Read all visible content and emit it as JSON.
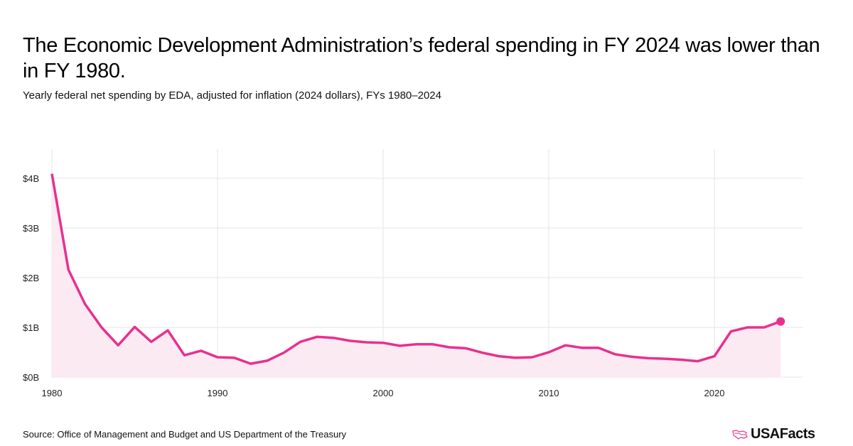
{
  "header": {
    "title": "The Economic Development Administration’s federal spending in FY 2024 was lower than in FY 1980.",
    "subtitle": "Yearly federal net spending by EDA, adjusted for inflation (2024 dollars), FYs 1980–2024"
  },
  "footer": {
    "source": "Source: Office of Management and Budget and US Department of the Treasury",
    "logo_text": "USAFacts"
  },
  "colors": {
    "line": "#E8308F",
    "fill": "#FCEAF3",
    "grid": "#E6E6E6"
  },
  "chart_data": {
    "type": "area",
    "title": "The Economic Development Administration’s federal spending in FY 2024 was lower than in FY 1980.",
    "subtitle": "Yearly federal net spending by EDA, adjusted for inflation (2024 dollars), FYs 1980–2024",
    "xlabel": "",
    "ylabel": "",
    "unit": "billions of 2024 dollars",
    "x": [
      1980,
      1981,
      1982,
      1983,
      1984,
      1985,
      1986,
      1987,
      1988,
      1989,
      1990,
      1991,
      1992,
      1993,
      1994,
      1995,
      1996,
      1997,
      1998,
      1999,
      2000,
      2001,
      2002,
      2003,
      2004,
      2005,
      2006,
      2007,
      2008,
      2009,
      2010,
      2011,
      2012,
      2013,
      2014,
      2015,
      2016,
      2017,
      2018,
      2019,
      2020,
      2021,
      2022,
      2023,
      2024
    ],
    "series": [
      {
        "name": "EDA net spending",
        "values": [
          4.09,
          2.16,
          1.47,
          1.0,
          0.64,
          1.01,
          0.71,
          0.94,
          0.44,
          0.53,
          0.4,
          0.39,
          0.27,
          0.33,
          0.49,
          0.71,
          0.81,
          0.79,
          0.73,
          0.7,
          0.69,
          0.63,
          0.66,
          0.66,
          0.6,
          0.58,
          0.49,
          0.42,
          0.39,
          0.4,
          0.5,
          0.64,
          0.59,
          0.59,
          0.46,
          0.41,
          0.38,
          0.37,
          0.35,
          0.32,
          0.42,
          0.92,
          1.0,
          1.0,
          1.12
        ]
      }
    ],
    "xlim": [
      1980,
      2025
    ],
    "ylim": [
      0,
      4.3
    ],
    "x_ticks": [
      1980,
      1990,
      2000,
      2010,
      2020
    ],
    "x_tick_labels": [
      "1980",
      "1990",
      "2000",
      "2010",
      "2020"
    ],
    "y_ticks": [
      0,
      1,
      2,
      3,
      4
    ],
    "y_tick_labels": [
      "$0B",
      "$1B",
      "$2B",
      "$3B",
      "$4B"
    ],
    "grid": true,
    "highlight_last_point": true,
    "legend": "none"
  }
}
